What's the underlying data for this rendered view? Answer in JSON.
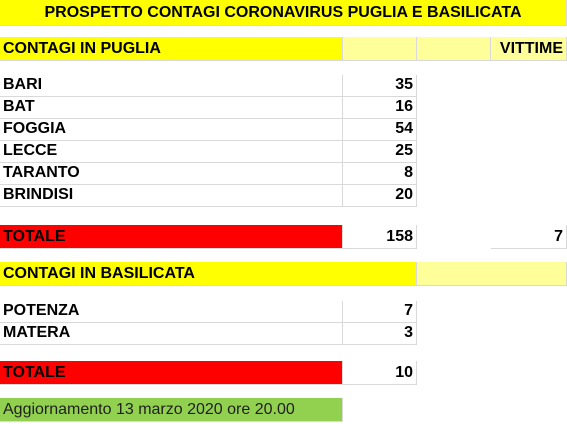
{
  "title": "PROSPETTO CONTAGI CORONAVIRUS PUGLIA E BASILICATA",
  "puglia": {
    "header": "CONTAGI IN PUGLIA",
    "vittime_label": "VITTIME",
    "rows": [
      {
        "province": "BARI",
        "value": "35"
      },
      {
        "province": "BAT",
        "value": "16"
      },
      {
        "province": "FOGGIA",
        "value": "54"
      },
      {
        "province": "LECCE",
        "value": "25"
      },
      {
        "province": "TARANTO",
        "value": "8"
      },
      {
        "province": "BRINDISI",
        "value": "20"
      }
    ],
    "total_label": "TOTALE",
    "total_value": "158",
    "vittime_value": "7"
  },
  "basilicata": {
    "header": "CONTAGI IN BASILICATA",
    "rows": [
      {
        "province": "POTENZA",
        "value": "7"
      },
      {
        "province": "MATERA",
        "value": "3"
      }
    ],
    "total_label": "TOTALE",
    "total_value": "10"
  },
  "update_note": "Aggiornamento 13 marzo 2020 ore 20.00",
  "colors": {
    "title_bg": "#ffff00",
    "header_bg": "#ffff00",
    "pale_bg": "#ffff99",
    "total_bg": "#ff0000",
    "update_bg": "#92d050",
    "grid": "#d9d9d9"
  }
}
